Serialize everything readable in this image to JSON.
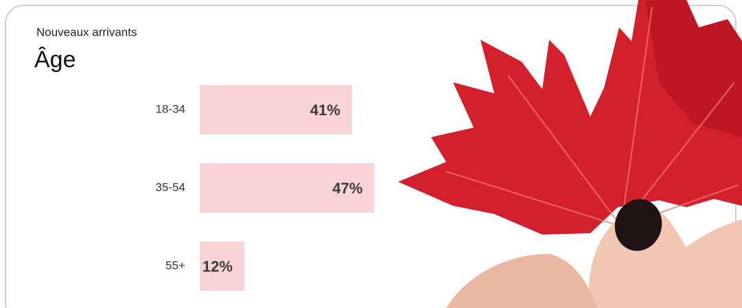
{
  "chart_data": {
    "type": "bar",
    "subtitle": "Nouveaux arrivants",
    "title": "Âge",
    "categories": [
      "18-34",
      "35-54",
      "55+"
    ],
    "values": [
      41,
      47,
      12
    ],
    "value_labels": [
      "41%",
      "47%",
      "12%"
    ],
    "color": "#f8d4d6"
  }
}
